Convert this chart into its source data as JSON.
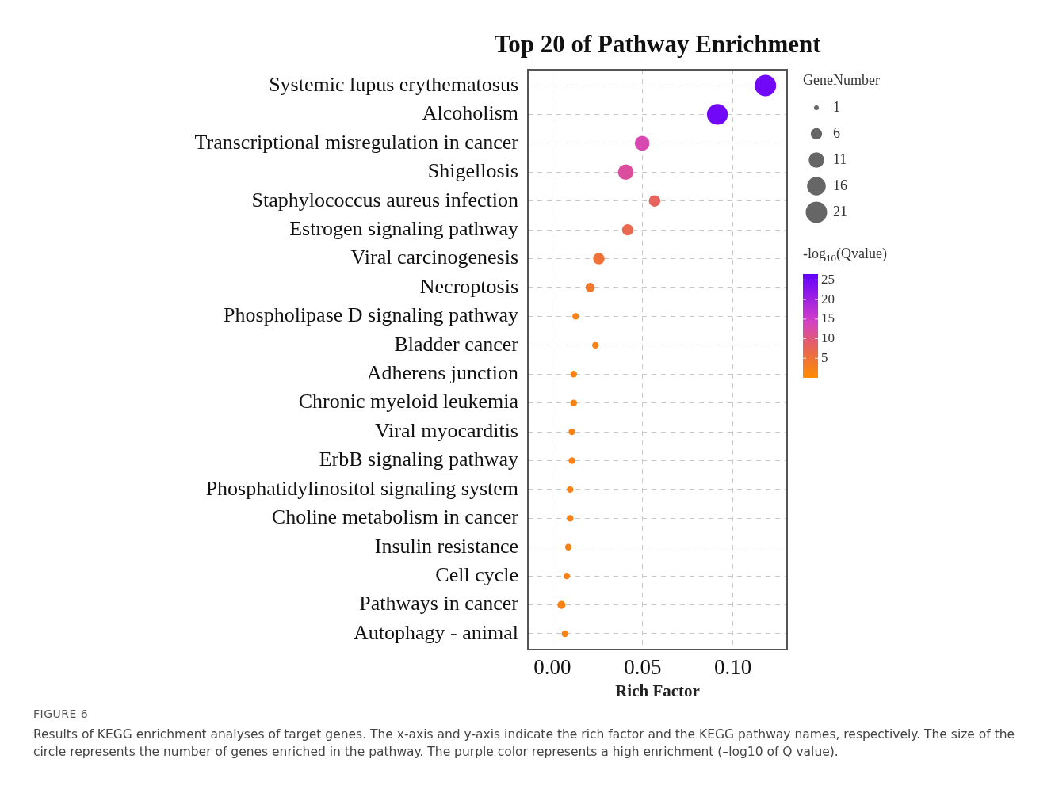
{
  "chart_data": {
    "type": "bubble",
    "title": "Top 20 of Pathway Enrichment",
    "xlabel": "Rich Factor",
    "legend_title": "GeneNumber",
    "clabel": "-log$_{10}$(Qvalue)",
    "orientation": "horizontal",
    "categories": [
      "Systemic lupus erythematosus",
      "Alcoholism",
      "Transcriptional misregulation in cancer",
      "Shigellosis",
      "Staphylococcus aureus infection",
      "Estrogen signaling pathway",
      "Viral carcinogenesis",
      "Necroptosis",
      "Phospholipase D signaling pathway",
      "Bladder cancer",
      "Adherens junction",
      "Chronic myeloid leukemia",
      "Viral myocarditis",
      "ErbB signaling pathway",
      "Phosphatidylinositol signaling system",
      "Choline metabolism in cancer",
      "Insulin resistance",
      "Cell cycle",
      "Pathways in cancer",
      "Autophagy - animal"
    ],
    "values": [
      0.118,
      0.0914,
      0.0497,
      0.0406,
      0.0566,
      0.0417,
      0.0257,
      0.0209,
      0.0129,
      0.0238,
      0.0118,
      0.0118,
      0.0108,
      0.0108,
      0.0098,
      0.0098,
      0.0088,
      0.0079,
      0.005,
      0.0069
    ],
    "sizes": [
      21,
      20,
      10,
      11,
      6,
      6,
      6,
      4,
      2,
      2,
      2,
      2,
      2,
      2,
      2,
      2,
      2,
      2,
      3,
      2
    ],
    "size_legend": [
      1,
      6,
      11,
      16,
      21
    ],
    "cvalues": [
      25,
      25,
      13,
      12,
      8,
      7,
      5,
      4,
      2,
      2,
      2,
      2,
      2,
      2,
      2,
      2,
      2,
      2,
      2,
      2
    ],
    "clim": [
      0,
      26.5
    ],
    "cticks": [
      5,
      10,
      15,
      20,
      25
    ],
    "xlim": [
      -0.0136,
      0.13
    ],
    "xticks": [
      {
        "value": 0,
        "label": "0.00"
      },
      {
        "value": 0.05,
        "label": "0.05"
      },
      {
        "value": 0.1,
        "label": "0.10"
      }
    ],
    "grid": true,
    "annotations": [
      "FIGURE 6",
      "Results of KEGG enrichment analyses of target genes. The x-axis and y-axis indicate the rich factor and the KEGG pathway names, respectively. The size of the circle represents the number of genes enriched in the pathway. The purple color represents a high enrichment (–log10 of Q value)."
    ]
  }
}
